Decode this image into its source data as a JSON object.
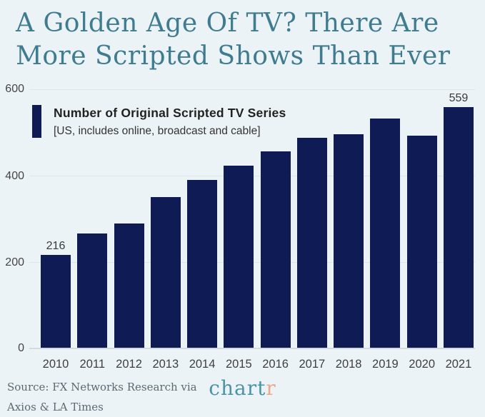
{
  "title": {
    "line1": "A Golden Age Of TV? There Are",
    "line2": "More Scripted Shows Than Ever"
  },
  "legend": {
    "label": "Number of Original Scripted TV Series",
    "sublabel": "[US, includes online, broadcast and cable]"
  },
  "chart_data": {
    "type": "bar",
    "title": "Number of Original Scripted TV Series",
    "subtitle": "[US, includes online, broadcast and cable]",
    "categories": [
      "2010",
      "2011",
      "2012",
      "2013",
      "2014",
      "2015",
      "2016",
      "2017",
      "2018",
      "2019",
      "2020",
      "2021"
    ],
    "values": [
      216,
      266,
      288,
      349,
      389,
      422,
      455,
      487,
      495,
      532,
      493,
      559
    ],
    "bar_labels": [
      "216",
      "",
      "",
      "",
      "",
      "",
      "",
      "",
      "",
      "",
      "",
      "559"
    ],
    "xlabel": "",
    "ylabel": "",
    "ylim": [
      0,
      600
    ],
    "yticks": [
      600,
      400,
      200,
      0
    ],
    "grid": true,
    "legend_position": "top-left",
    "bar_color": "#0f1b55"
  },
  "footer": {
    "source_line1": "Source: FX Networks Research via",
    "source_line2": "Axios & LA Times",
    "logo_text_main": "chart",
    "logo_text_accent": "r",
    "logo_color_main": "#4c93a8",
    "logo_color_accent": "#e9a98a"
  },
  "colors": {
    "background": "#ecf3f7",
    "title": "#3f7c8f",
    "bar": "#0f1b55"
  }
}
